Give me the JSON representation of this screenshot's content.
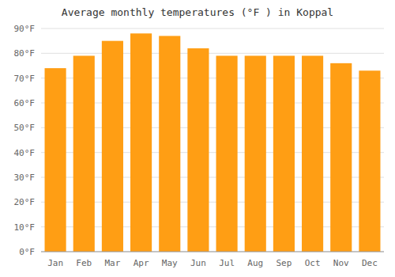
{
  "chart_data": {
    "type": "bar",
    "title": "Average monthly temperatures (°F ) in Koppal",
    "categories": [
      "Jan",
      "Feb",
      "Mar",
      "Apr",
      "May",
      "Jun",
      "Jul",
      "Aug",
      "Sep",
      "Oct",
      "Nov",
      "Dec"
    ],
    "values": [
      74,
      79,
      85,
      88,
      87,
      82,
      79,
      79,
      79,
      79,
      76,
      73
    ],
    "color": "#ff9e14",
    "ylim": [
      0,
      90
    ],
    "yticks": [
      {
        "value": 0,
        "label": "0°F"
      },
      {
        "value": 10,
        "label": "10°F"
      },
      {
        "value": 20,
        "label": "20°F"
      },
      {
        "value": 30,
        "label": "30°F"
      },
      {
        "value": 40,
        "label": "40°F"
      },
      {
        "value": 50,
        "label": "50°F"
      },
      {
        "value": 60,
        "label": "60°F"
      },
      {
        "value": 70,
        "label": "70°F"
      },
      {
        "value": 80,
        "label": "80°F"
      },
      {
        "value": 90,
        "label": "90°F"
      }
    ],
    "grid": true
  }
}
